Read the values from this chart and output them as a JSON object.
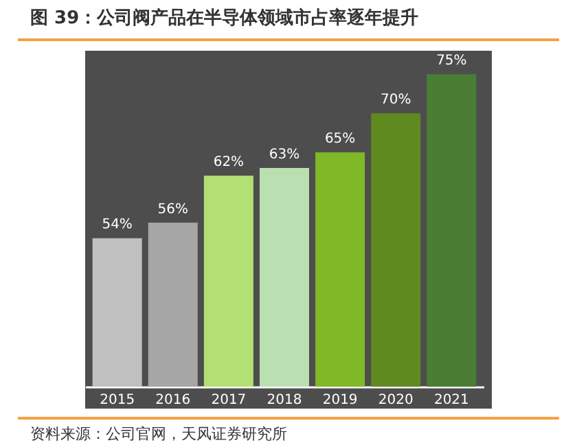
{
  "chart_data": {
    "type": "bar",
    "title": "图 39：公司阀产品在半导体领域市占率逐年提升",
    "categories": [
      "2015",
      "2016",
      "2017",
      "2018",
      "2019",
      "2020",
      "2021"
    ],
    "values": [
      54,
      56,
      62,
      63,
      65,
      70,
      75
    ],
    "colors": [
      "#c0c0c0",
      "#a6a6a6",
      "#b3e072",
      "#badfb1",
      "#80b927",
      "#5f8a1f",
      "#4a7d33"
    ],
    "value_labels": [
      "54%",
      "56%",
      "62%",
      "63%",
      "65%",
      "70%",
      "75%"
    ],
    "ylim": [
      35,
      78
    ],
    "tick_labels": "x",
    "annotations": [
      "资料来源：公司官网，天风证券研究所"
    ]
  }
}
